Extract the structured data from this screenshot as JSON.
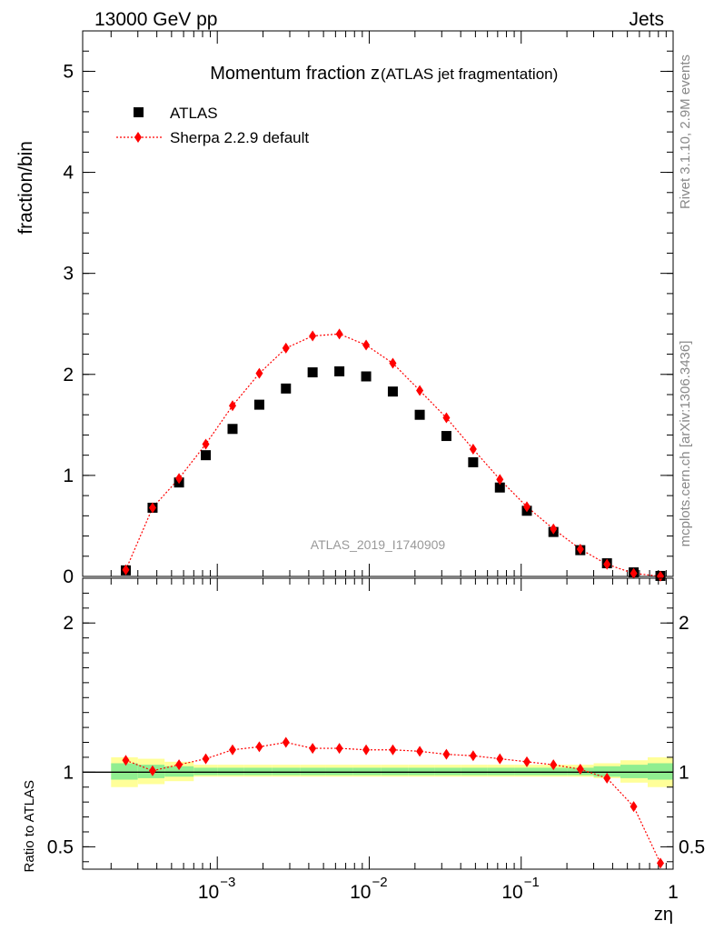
{
  "header": {
    "left": "13000 GeV pp",
    "right": "Jets"
  },
  "side": {
    "rivet": "Rivet 3.1.10,  2.9M events",
    "mcplots": "mcplots.cern.ch [arXiv:1306.3436]"
  },
  "chart_data": [
    {
      "type": "scatter",
      "title_main": "Momentum fraction z",
      "title_sub": "(ATLAS jet fragmentation)",
      "xlabel": "",
      "ylabel": "fraction/bin",
      "x_scale": "log",
      "xlim": [
        0.00013,
        1
      ],
      "ylim": [
        0,
        5.4
      ],
      "y_ticks": [
        "0",
        "1",
        "2",
        "3",
        "4",
        "5"
      ],
      "legend_position": "top-left",
      "watermark": "ATLAS_2019_I1740909",
      "x": [
        0.00025,
        0.000375,
        0.00056,
        0.00084,
        0.00126,
        0.00189,
        0.00283,
        0.00424,
        0.00636,
        0.00954,
        0.0143,
        0.0215,
        0.0322,
        0.0483,
        0.0724,
        0.109,
        0.163,
        0.245,
        0.367,
        0.55,
        0.825
      ],
      "series": [
        {
          "name": "ATLAS",
          "marker": "square",
          "color": "#000000",
          "values": [
            0.06,
            0.68,
            0.93,
            1.2,
            1.46,
            1.7,
            1.86,
            2.02,
            2.03,
            1.98,
            1.83,
            1.6,
            1.39,
            1.13,
            0.88,
            0.65,
            0.44,
            0.26,
            0.13,
            0.04,
            0.005
          ]
        },
        {
          "name": "Sherpa 2.2.9 default",
          "marker": "diamond",
          "color": "#ff0000",
          "line": "dotted",
          "values": [
            0.065,
            0.68,
            0.97,
            1.31,
            1.69,
            2.01,
            2.26,
            2.38,
            2.4,
            2.29,
            2.11,
            1.84,
            1.57,
            1.26,
            0.96,
            0.69,
            0.47,
            0.27,
            0.12,
            0.03,
            0.002
          ]
        }
      ]
    },
    {
      "type": "scatter",
      "xlabel": "zη",
      "ylabel": "Ratio to ATLAS",
      "x_scale": "log",
      "xlim": [
        0.00013,
        1
      ],
      "ylim": [
        0.35,
        2.3
      ],
      "y_ticks": [
        "0.5",
        "1",
        "2"
      ],
      "x_ticks": [
        {
          "value": 0.001,
          "base": "10",
          "exp": "−3"
        },
        {
          "value": 0.01,
          "base": "10",
          "exp": "−2"
        },
        {
          "value": 0.1,
          "base": "10",
          "exp": "−1"
        },
        {
          "value": 1,
          "base": "1",
          "exp": ""
        }
      ],
      "band_edges": [
        0.0002,
        0.0003,
        0.00045,
        0.0007,
        0.001,
        0.0015,
        0.0023,
        0.0035,
        0.0052,
        0.0078,
        0.012,
        0.018,
        0.027,
        0.04,
        0.06,
        0.09,
        0.135,
        0.2,
        0.3,
        0.45,
        0.68,
        1.0
      ],
      "band_inner": [
        [
          0.95,
          1.06
        ],
        [
          0.96,
          1.05
        ],
        [
          0.97,
          1.04
        ],
        [
          0.98,
          1.03
        ],
        [
          0.98,
          1.03
        ],
        [
          0.98,
          1.03
        ],
        [
          0.98,
          1.03
        ],
        [
          0.98,
          1.03
        ],
        [
          0.98,
          1.03
        ],
        [
          0.98,
          1.03
        ],
        [
          0.98,
          1.03
        ],
        [
          0.98,
          1.03
        ],
        [
          0.98,
          1.03
        ],
        [
          0.98,
          1.03
        ],
        [
          0.98,
          1.03
        ],
        [
          0.98,
          1.03
        ],
        [
          0.98,
          1.03
        ],
        [
          0.98,
          1.03
        ],
        [
          0.97,
          1.04
        ],
        [
          0.96,
          1.05
        ],
        [
          0.95,
          1.06
        ]
      ],
      "band_outer": [
        [
          0.9,
          1.1
        ],
        [
          0.92,
          1.09
        ],
        [
          0.94,
          1.07
        ],
        [
          0.97,
          1.05
        ],
        [
          0.97,
          1.05
        ],
        [
          0.97,
          1.05
        ],
        [
          0.97,
          1.05
        ],
        [
          0.97,
          1.05
        ],
        [
          0.97,
          1.05
        ],
        [
          0.97,
          1.05
        ],
        [
          0.97,
          1.05
        ],
        [
          0.97,
          1.05
        ],
        [
          0.97,
          1.05
        ],
        [
          0.97,
          1.05
        ],
        [
          0.97,
          1.05
        ],
        [
          0.97,
          1.05
        ],
        [
          0.97,
          1.05
        ],
        [
          0.97,
          1.05
        ],
        [
          0.96,
          1.06
        ],
        [
          0.93,
          1.08
        ],
        [
          0.9,
          1.1
        ]
      ],
      "band_colors": {
        "outer": "#ffff99",
        "inner": "#90ee90"
      },
      "series": [
        {
          "name": "Sherpa 2.2.9 default",
          "marker": "diamond",
          "color": "#ff0000",
          "line": "dotted",
          "values": [
            1.08,
            1.01,
            1.05,
            1.09,
            1.15,
            1.17,
            1.2,
            1.16,
            1.16,
            1.15,
            1.15,
            1.14,
            1.12,
            1.11,
            1.09,
            1.07,
            1.05,
            1.02,
            0.96,
            0.77,
            0.39
          ]
        }
      ]
    }
  ]
}
